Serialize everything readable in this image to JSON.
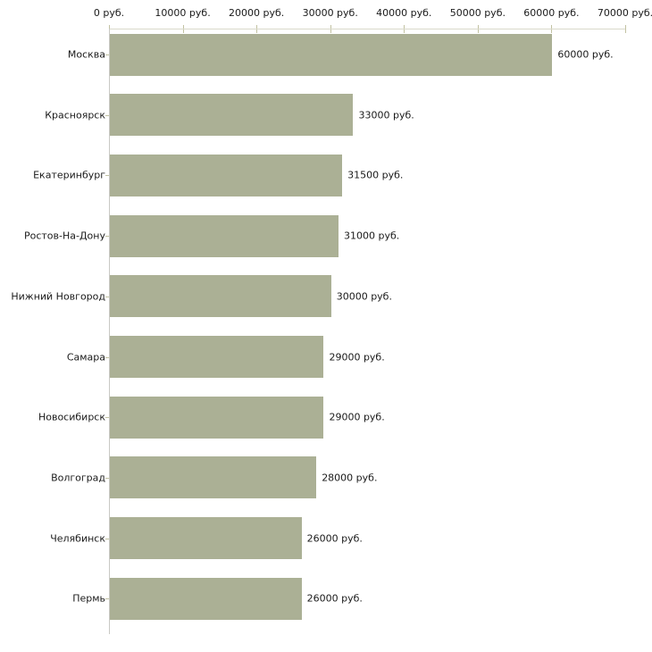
{
  "chart_data": {
    "type": "bar",
    "orientation": "horizontal",
    "title": "",
    "xlabel": "",
    "ylabel": "",
    "unit": "руб.",
    "categories": [
      "Москва",
      "Красноярск",
      "Екатеринбург",
      "Ростов-На-Дону",
      "Нижний Новгород",
      "Самара",
      "Новосибирск",
      "Волгоград",
      "Челябинск",
      "Пермь"
    ],
    "values": [
      60000,
      33000,
      31500,
      31000,
      30000,
      29000,
      29000,
      28000,
      26000,
      26000
    ],
    "value_labels": [
      "60000 руб.",
      "33000 руб.",
      "31500 руб.",
      "31000 руб.",
      "30000 руб.",
      "29000 руб.",
      "29000 руб.",
      "28000 руб.",
      "26000 руб.",
      "26000 руб."
    ],
    "x_tick_values": [
      0,
      10000,
      20000,
      30000,
      40000,
      50000,
      60000,
      70000
    ],
    "x_tick_labels": [
      "0 руб.",
      "10000 руб.",
      "20000 руб.",
      "30000 руб.",
      "40000 руб.",
      "50000 руб.",
      "60000 руб.",
      "70000 руб."
    ],
    "xlim": [
      0,
      70000
    ],
    "grid": false,
    "legend": false,
    "colors": {
      "bar_fill": "#abb095",
      "axis_line": "#d9d9ca",
      "tick_mark": "#c2c2a2",
      "y_axis_line": "#c9c9c4",
      "text": "#1a1a1a",
      "background": "#ffffff"
    }
  }
}
